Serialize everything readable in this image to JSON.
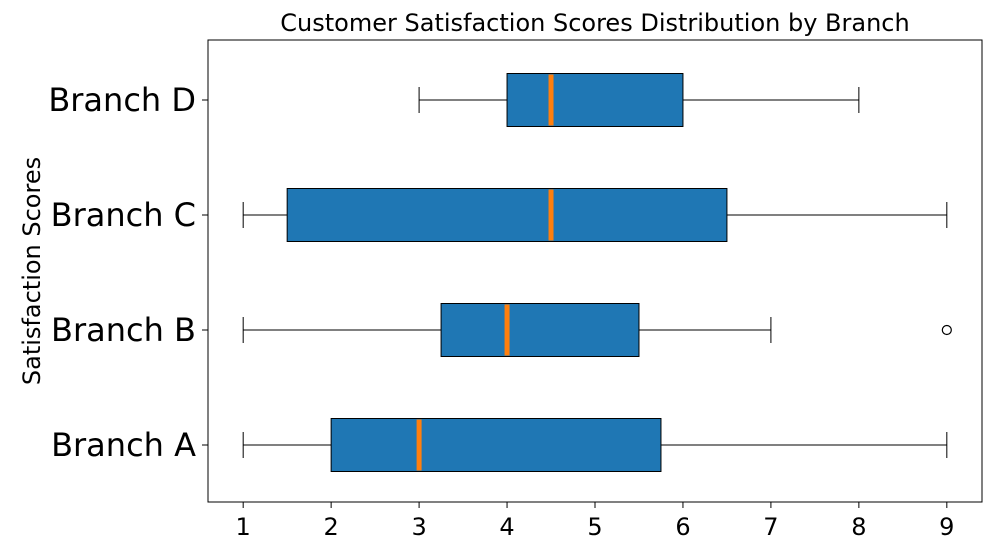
{
  "chart_data": {
    "type": "boxplot",
    "orientation": "horizontal",
    "title": "Customer Satisfaction Scores Distribution by Branch",
    "ylabel": "Satisfaction Scores",
    "xlabel": "",
    "xlim": [
      0.6,
      9.4
    ],
    "x_ticks": [
      1,
      2,
      3,
      4,
      5,
      6,
      7,
      8,
      9
    ],
    "categories": [
      "Branch A",
      "Branch B",
      "Branch C",
      "Branch D"
    ],
    "boxes": [
      {
        "category": "Branch A",
        "whisker_low": 1,
        "q1": 2,
        "median": 3,
        "q3": 5.75,
        "whisker_high": 9,
        "outliers": []
      },
      {
        "category": "Branch B",
        "whisker_low": 1,
        "q1": 3.25,
        "median": 4,
        "q3": 5.5,
        "whisker_high": 7,
        "outliers": [
          9
        ]
      },
      {
        "category": "Branch C",
        "whisker_low": 1,
        "q1": 1.5,
        "median": 4.5,
        "q3": 6.5,
        "whisker_high": 9,
        "outliers": []
      },
      {
        "category": "Branch D",
        "whisker_low": 3,
        "q1": 4,
        "median": 4.5,
        "q3": 6,
        "whisker_high": 8,
        "outliers": []
      }
    ],
    "grid": false,
    "colors": {
      "box_fill": "#1f77b4",
      "median": "#ff7f0e",
      "edge": "#000000"
    }
  }
}
